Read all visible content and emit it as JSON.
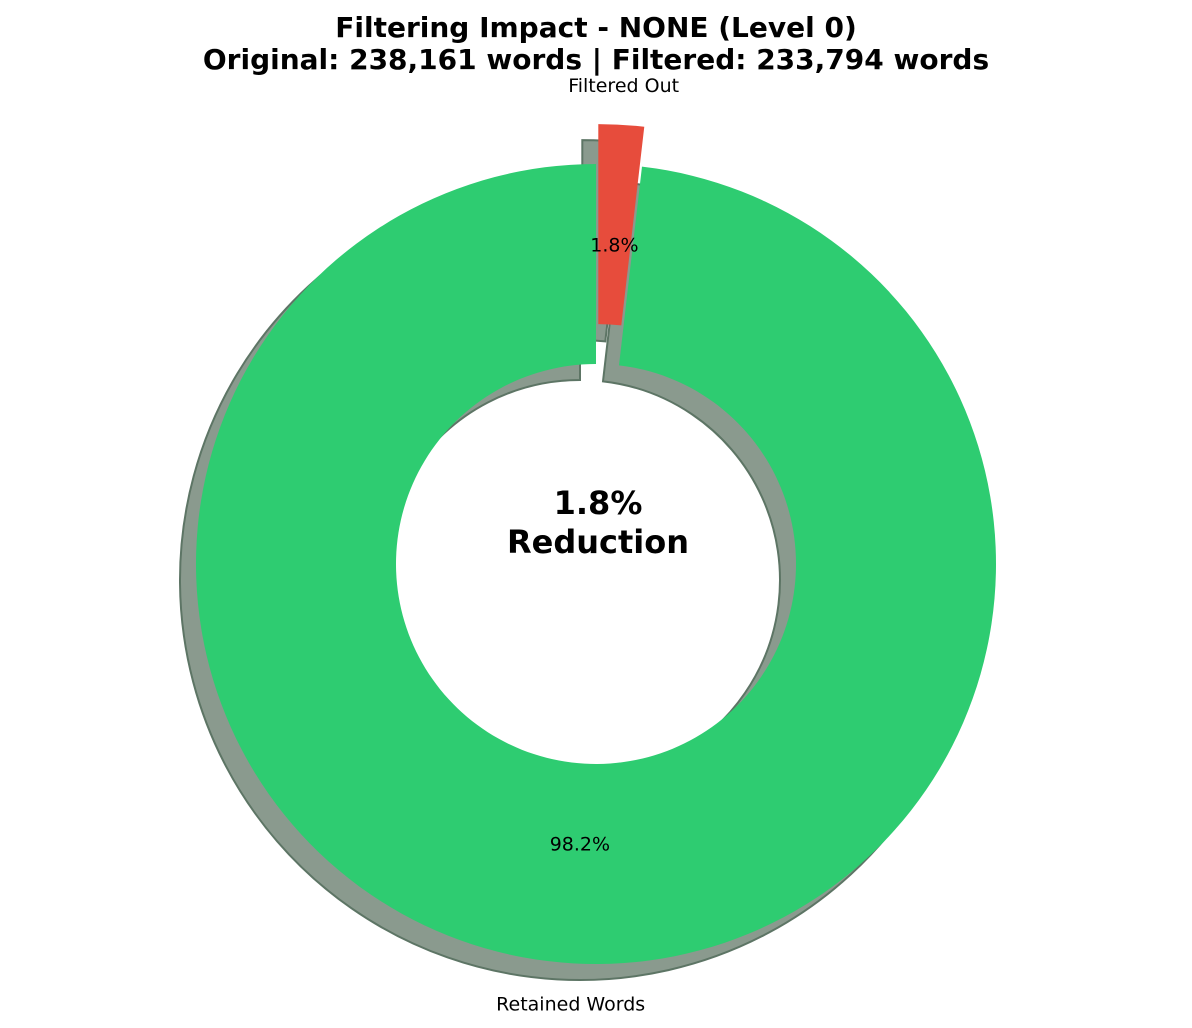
{
  "chart_data": {
    "type": "pie",
    "variant": "donut",
    "title_lines": [
      "Filtering Impact - NONE (Level 0)",
      "Original: 238,161 words | Filtered: 233,794 words"
    ],
    "center_text": [
      "1.8%",
      "Reduction"
    ],
    "slices": [
      {
        "label": "Filtered Out",
        "value": 4367,
        "percent_label": "1.8%",
        "color": "#e74c3c",
        "exploded": true
      },
      {
        "label": "Retained Words",
        "value": 233794,
        "percent_label": "98.2%",
        "color": "#2ecc71",
        "exploded": false
      }
    ],
    "start_angle_deg": 90,
    "direction": "clockwise",
    "shadow": true,
    "shadow_color": "#8a9a8e",
    "legend": "none"
  }
}
